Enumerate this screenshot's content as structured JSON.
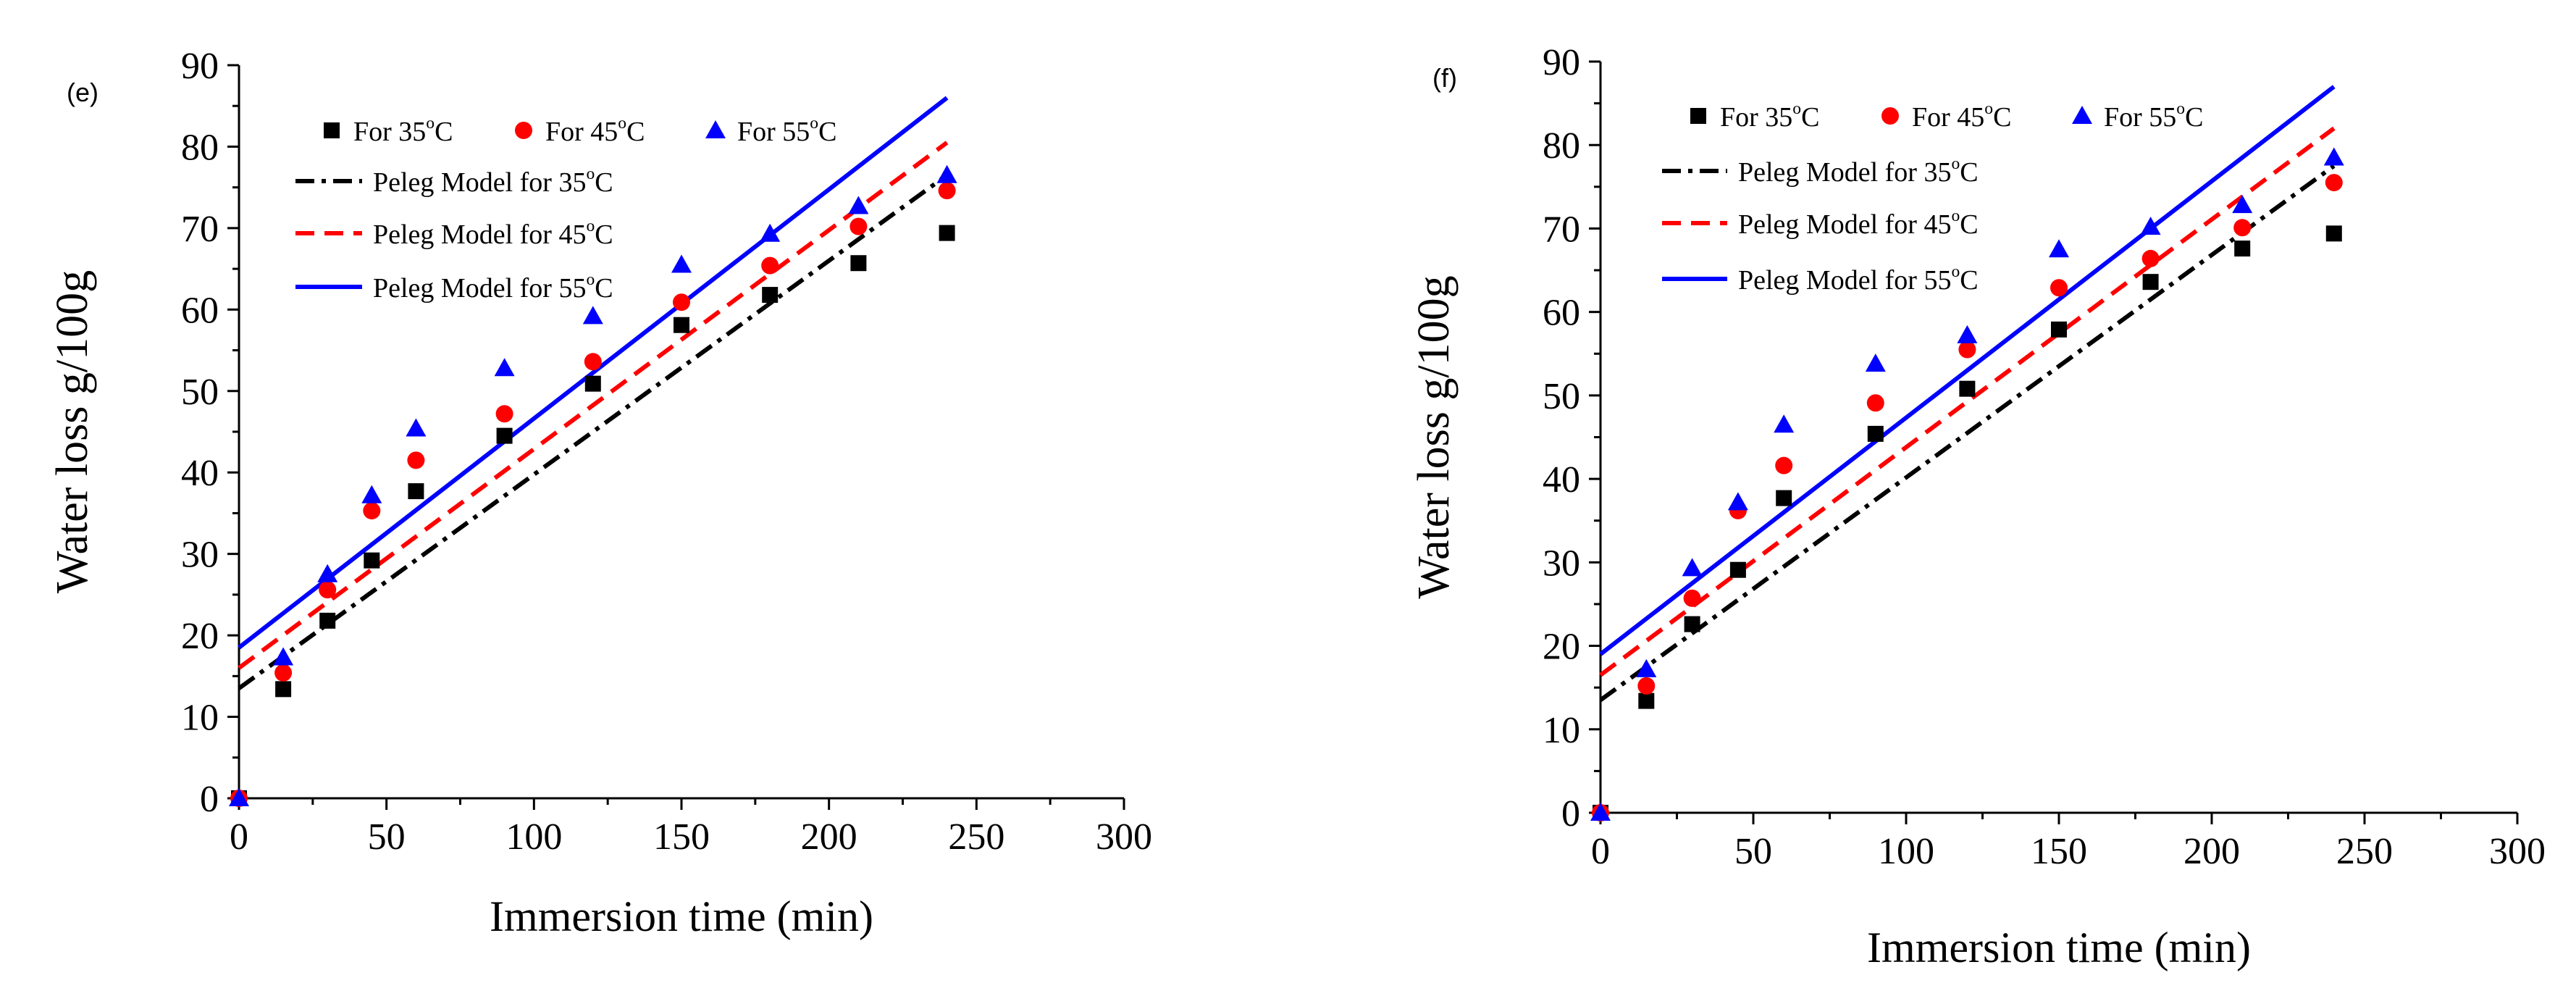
{
  "chart_data": [
    {
      "type": "scatter",
      "panel_label": "(e)",
      "xlabel": "Immersion time (min)",
      "ylabel": "Water loss g/100g",
      "xlim": [
        0,
        300
      ],
      "ylim": [
        0,
        90
      ],
      "xticks": [
        0,
        50,
        100,
        150,
        200,
        250,
        300
      ],
      "yticks": [
        0,
        10,
        20,
        30,
        40,
        50,
        60,
        70,
        80,
        90
      ],
      "legend_position": "top-left",
      "series": [
        {
          "name": "For 35°C",
          "label_main": "For 35",
          "label_sup": "o",
          "label_end": "C",
          "marker": "square",
          "color": "#000000",
          "x": [
            0,
            15,
            30,
            45,
            60,
            90,
            120,
            150,
            180,
            210,
            240
          ],
          "y": [
            0,
            13.4,
            21.8,
            29.2,
            37.7,
            44.5,
            50.9,
            58.1,
            61.8,
            65.7,
            69.4
          ]
        },
        {
          "name": "For 45°C",
          "label_main": "For 45",
          "label_sup": "o",
          "label_end": "C",
          "marker": "circle",
          "color": "#ff0000",
          "x": [
            0,
            15,
            30,
            45,
            60,
            90,
            120,
            150,
            180,
            210,
            240
          ],
          "y": [
            0,
            15.4,
            25.6,
            35.3,
            41.5,
            47.2,
            53.6,
            60.9,
            65.4,
            70.2,
            74.6
          ]
        },
        {
          "name": "For 55°C",
          "label_main": "For 55",
          "label_sup": "o",
          "label_end": "C",
          "marker": "triangle",
          "color": "#0000ff",
          "x": [
            0,
            15,
            30,
            45,
            60,
            90,
            120,
            150,
            180,
            210,
            240
          ],
          "y": [
            0,
            17.3,
            27.5,
            37.2,
            45.4,
            52.8,
            59.2,
            65.5,
            69.3,
            72.7,
            76.5
          ]
        }
      ],
      "model_lines": [
        {
          "name": "Peleg Model for 35°C",
          "label_main": "Peleg Model for 35",
          "label_sup": "o",
          "label_end": "C",
          "style": "dashdot",
          "color": "#000000",
          "x": [
            0,
            240
          ],
          "y": [
            13.5,
            76.5
          ]
        },
        {
          "name": "Peleg Model for 45°C",
          "label_main": "Peleg Model for 45",
          "label_sup": "o",
          "label_end": "C",
          "style": "dash",
          "color": "#ff0000",
          "x": [
            0,
            240
          ],
          "y": [
            16.0,
            80.5
          ]
        },
        {
          "name": "Peleg Model for 55°C",
          "label_main": "Peleg Model for 55",
          "label_sup": "o",
          "label_end": "C",
          "style": "solid",
          "color": "#0000ff",
          "x": [
            0,
            240
          ],
          "y": [
            18.5,
            86.0
          ]
        }
      ]
    },
    {
      "type": "scatter",
      "panel_label": "(f)",
      "xlabel": "Immersion time (min)",
      "ylabel": "Water loss g/100g",
      "xlim": [
        0,
        300
      ],
      "ylim": [
        0,
        90
      ],
      "xticks": [
        0,
        50,
        100,
        150,
        200,
        250,
        300
      ],
      "yticks": [
        0,
        10,
        20,
        30,
        40,
        50,
        60,
        70,
        80,
        90
      ],
      "legend_position": "top-left",
      "series": [
        {
          "name": "For 35°C",
          "label_main": "For 35",
          "label_sup": "o",
          "label_end": "C",
          "marker": "square",
          "color": "#000000",
          "x": [
            0,
            15,
            30,
            45,
            60,
            90,
            120,
            150,
            180,
            210,
            240
          ],
          "y": [
            0,
            13.4,
            22.6,
            29.1,
            37.7,
            45.4,
            50.8,
            57.9,
            63.6,
            67.6,
            69.4
          ]
        },
        {
          "name": "For 45°C",
          "label_main": "For 45",
          "label_sup": "o",
          "label_end": "C",
          "marker": "circle",
          "color": "#ff0000",
          "x": [
            0,
            15,
            30,
            45,
            60,
            90,
            120,
            150,
            180,
            210,
            240
          ],
          "y": [
            0,
            15.2,
            25.7,
            36.2,
            41.6,
            49.1,
            55.5,
            62.9,
            66.4,
            70.1,
            75.5
          ]
        },
        {
          "name": "For 55°C",
          "label_main": "For 55",
          "label_sup": "o",
          "label_end": "C",
          "marker": "triangle",
          "color": "#0000ff",
          "x": [
            0,
            15,
            30,
            45,
            60,
            90,
            120,
            150,
            180,
            210,
            240
          ],
          "y": [
            0,
            17.2,
            29.3,
            37.2,
            46.5,
            53.8,
            57.2,
            67.5,
            70.2,
            72.8,
            78.5
          ]
        }
      ],
      "model_lines": [
        {
          "name": "Peleg Model for 35°C",
          "label_main": "Peleg Model for 35",
          "label_sup": "o",
          "label_end": "C",
          "style": "dashdot",
          "color": "#000000",
          "x": [
            0,
            240
          ],
          "y": [
            13.5,
            77.5
          ]
        },
        {
          "name": "Peleg Model for 45°C",
          "label_main": "Peleg Model for 45",
          "label_sup": "o",
          "label_end": "C",
          "style": "dash",
          "color": "#ff0000",
          "x": [
            0,
            240
          ],
          "y": [
            16.5,
            82.0
          ]
        },
        {
          "name": "Peleg Model for 55°C",
          "label_main": "Peleg Model for 55",
          "label_sup": "o",
          "label_end": "C",
          "style": "solid",
          "color": "#0000ff",
          "x": [
            0,
            240
          ],
          "y": [
            19.0,
            87.0
          ]
        }
      ]
    }
  ]
}
